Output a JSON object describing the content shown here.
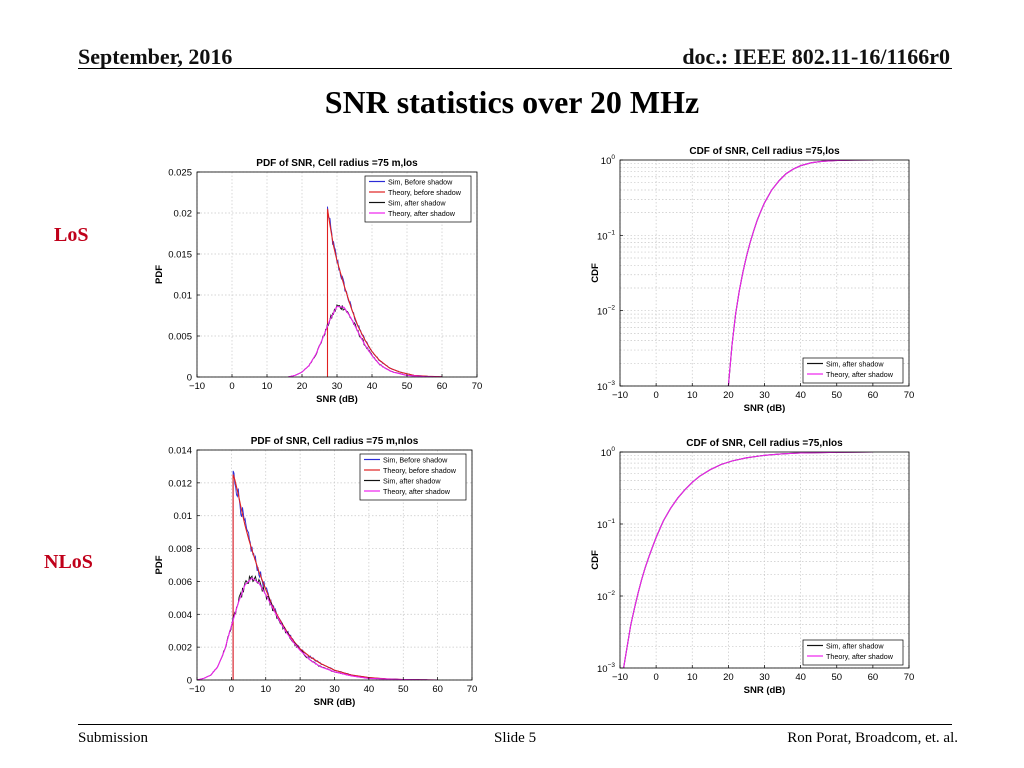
{
  "header": {
    "date": "September, 2016",
    "doc": "doc.: IEEE 802.11-16/1166r0"
  },
  "title": "SNR statistics over 20 MHz",
  "rows": {
    "los": "LoS",
    "nlos": "NLoS"
  },
  "footer": {
    "left": "Submission",
    "center": "Slide 5",
    "right": "Ron Porat, Broadcom, et. al."
  },
  "colors": {
    "sim_before": "#2b2bd6",
    "theory_before": "#e02020",
    "sim_after": "#111111",
    "theory_after": "#ee22ee",
    "row_label": "#c0001a"
  },
  "chart_data": [
    {
      "id": "pdf_los",
      "type": "line",
      "title": "PDF of SNR, Cell radius =75 m,los",
      "xlabel": "SNR (dB)",
      "ylabel": "PDF",
      "xlim": [
        -10,
        70
      ],
      "ylim": [
        0,
        0.025
      ],
      "xticks": [
        -10,
        0,
        10,
        20,
        30,
        40,
        50,
        60,
        70
      ],
      "yticks": [
        0,
        0.005,
        0.01,
        0.015,
        0.02,
        0.025
      ],
      "ytick_labels": [
        "0",
        "0.005",
        "0.01",
        "0.015",
        "0.02",
        "0.025"
      ],
      "legend": [
        "Sim, Before shadow",
        "Theory, before shadow",
        "Sim, after shadow",
        "Theory, after shadow"
      ],
      "legend_position": "top-right",
      "series": [
        {
          "name": "Sim, Before shadow",
          "color_key": "sim_before",
          "noisy": true,
          "x": [
            27.3,
            27.3,
            28,
            29,
            30,
            32,
            34,
            36,
            38,
            40,
            42,
            45,
            48,
            52,
            56,
            60
          ],
          "y": [
            0,
            0.0205,
            0.0185,
            0.016,
            0.0142,
            0.0112,
            0.0085,
            0.0062,
            0.0045,
            0.0031,
            0.0021,
            0.0011,
            0.0006,
            0.0002,
            8e-05,
            3e-05
          ]
        },
        {
          "name": "Theory, before shadow",
          "color_key": "theory_before",
          "noisy": false,
          "x": [
            27.3,
            27.3,
            28,
            29,
            30,
            32,
            34,
            36,
            38,
            40,
            42,
            45,
            48,
            52,
            56,
            60
          ],
          "y": [
            0,
            0.0205,
            0.0185,
            0.016,
            0.0142,
            0.0112,
            0.0085,
            0.0062,
            0.0045,
            0.0031,
            0.0021,
            0.0011,
            0.0006,
            0.0002,
            8e-05,
            3e-05
          ]
        },
        {
          "name": "Sim, after shadow",
          "color_key": "sim_after",
          "noisy": true,
          "x": [
            16,
            18,
            20,
            22,
            24,
            26,
            28,
            30,
            32,
            34,
            36,
            38,
            40,
            42,
            44,
            46,
            50,
            55,
            60
          ],
          "y": [
            0,
            0.0002,
            0.0006,
            0.0014,
            0.0028,
            0.0048,
            0.007,
            0.0086,
            0.0085,
            0.0072,
            0.0055,
            0.0039,
            0.0026,
            0.0016,
            0.001,
            0.0006,
            0.0002,
            5e-05,
            0
          ]
        },
        {
          "name": "Theory, after shadow",
          "color_key": "theory_after",
          "noisy": false,
          "x": [
            16,
            18,
            20,
            22,
            24,
            26,
            28,
            30,
            32,
            34,
            36,
            38,
            40,
            42,
            44,
            46,
            50,
            55,
            60
          ],
          "y": [
            0,
            0.0002,
            0.0006,
            0.0014,
            0.0028,
            0.0048,
            0.007,
            0.0086,
            0.0085,
            0.0072,
            0.0055,
            0.0039,
            0.0026,
            0.0016,
            0.001,
            0.0006,
            0.0002,
            5e-05,
            0
          ]
        }
      ]
    },
    {
      "id": "cdf_los",
      "type": "line",
      "title": "CDF of SNR, Cell radius =75,los",
      "xlabel": "SNR (dB)",
      "ylabel": "CDF",
      "xscale": "linear",
      "yscale": "log",
      "xlim": [
        -10,
        70
      ],
      "ylim": [
        0.001,
        1
      ],
      "xticks": [
        -10,
        0,
        10,
        20,
        30,
        40,
        50,
        60,
        70
      ],
      "yticks": [
        0.001,
        0.01,
        0.1,
        1
      ],
      "ytick_exponents": [
        "-3",
        "-2",
        "-1",
        "0"
      ],
      "legend": [
        "Sim, after shadow",
        "Theory, after shadow"
      ],
      "legend_position": "bottom-right",
      "series": [
        {
          "name": "Sim, after shadow",
          "color_key": "sim_after",
          "x": [
            20,
            21,
            22,
            23,
            24,
            25,
            26,
            27,
            28,
            29,
            30,
            32,
            34,
            36,
            38,
            40,
            43,
            46,
            50,
            55,
            60
          ],
          "y": [
            0.001,
            0.0035,
            0.009,
            0.018,
            0.032,
            0.052,
            0.08,
            0.115,
            0.16,
            0.21,
            0.27,
            0.4,
            0.53,
            0.66,
            0.76,
            0.84,
            0.92,
            0.96,
            0.985,
            0.997,
            1
          ]
        },
        {
          "name": "Theory, after shadow",
          "color_key": "theory_after",
          "x": [
            20,
            21,
            22,
            23,
            24,
            25,
            26,
            27,
            28,
            29,
            30,
            32,
            34,
            36,
            38,
            40,
            43,
            46,
            50,
            55,
            60
          ],
          "y": [
            0.001,
            0.0035,
            0.009,
            0.018,
            0.032,
            0.052,
            0.08,
            0.115,
            0.16,
            0.21,
            0.27,
            0.4,
            0.53,
            0.66,
            0.76,
            0.84,
            0.92,
            0.96,
            0.985,
            0.997,
            1
          ]
        }
      ]
    },
    {
      "id": "pdf_nlos",
      "type": "line",
      "title": "PDF of SNR, Cell radius =75 m,nlos",
      "xlabel": "SNR (dB)",
      "ylabel": "PDF",
      "xlim": [
        -10,
        70
      ],
      "ylim": [
        0,
        0.014
      ],
      "xticks": [
        -10,
        0,
        10,
        20,
        30,
        40,
        50,
        60,
        70
      ],
      "yticks": [
        0,
        0.002,
        0.004,
        0.006,
        0.008,
        0.01,
        0.012,
        0.014
      ],
      "ytick_labels": [
        "0",
        "0.002",
        "0.004",
        "0.006",
        "0.008",
        "0.01",
        "0.012",
        "0.014"
      ],
      "legend": [
        "Sim, Before shadow",
        "Theory, before shadow",
        "Sim, after shadow",
        "Theory, after shadow"
      ],
      "legend_position": "top-right",
      "series": [
        {
          "name": "Sim, Before shadow",
          "color_key": "sim_before",
          "noisy": true,
          "x": [
            0.5,
            0.5,
            1,
            2,
            3,
            4,
            5,
            6,
            8,
            10,
            12,
            14,
            16,
            18,
            20,
            23,
            26,
            30,
            35,
            40,
            45,
            50,
            60
          ],
          "y": [
            0,
            0.0125,
            0.0122,
            0.0113,
            0.0103,
            0.0094,
            0.0086,
            0.0079,
            0.0066,
            0.0055,
            0.0045,
            0.0037,
            0.003,
            0.0024,
            0.0019,
            0.0014,
            0.001,
            0.0006,
            0.0003,
            0.00015,
            7e-05,
            3e-05,
            0
          ]
        },
        {
          "name": "Theory, before shadow",
          "color_key": "theory_before",
          "noisy": false,
          "x": [
            0.5,
            0.5,
            1,
            2,
            3,
            4,
            5,
            6,
            8,
            10,
            12,
            14,
            16,
            18,
            20,
            23,
            26,
            30,
            35,
            40,
            45,
            50,
            60
          ],
          "y": [
            0,
            0.0125,
            0.0122,
            0.0113,
            0.0103,
            0.0094,
            0.0086,
            0.0079,
            0.0066,
            0.0055,
            0.0045,
            0.0037,
            0.003,
            0.0024,
            0.0019,
            0.0014,
            0.001,
            0.0006,
            0.0003,
            0.00015,
            7e-05,
            3e-05,
            0
          ]
        },
        {
          "name": "Sim, after shadow",
          "color_key": "sim_after",
          "noisy": true,
          "x": [
            -10,
            -8,
            -6,
            -4,
            -2,
            0,
            2,
            4,
            6,
            8,
            10,
            12,
            14,
            16,
            18,
            20,
            23,
            26,
            30,
            35,
            40,
            50,
            60
          ],
          "y": [
            0,
            0.0001,
            0.0003,
            0.0008,
            0.0018,
            0.0033,
            0.0047,
            0.0058,
            0.0062,
            0.0059,
            0.0052,
            0.0044,
            0.0036,
            0.0029,
            0.0023,
            0.0018,
            0.0012,
            0.0008,
            0.0005,
            0.00025,
            0.0001,
            3e-05,
            0
          ]
        },
        {
          "name": "Theory, after shadow",
          "color_key": "theory_after",
          "noisy": false,
          "x": [
            -10,
            -8,
            -6,
            -4,
            -2,
            0,
            2,
            4,
            6,
            8,
            10,
            12,
            14,
            16,
            18,
            20,
            23,
            26,
            30,
            35,
            40,
            50,
            60
          ],
          "y": [
            0,
            0.0001,
            0.0003,
            0.0008,
            0.0018,
            0.0033,
            0.0047,
            0.0058,
            0.0062,
            0.0059,
            0.0052,
            0.0044,
            0.0036,
            0.0029,
            0.0023,
            0.0018,
            0.0012,
            0.0008,
            0.0005,
            0.00025,
            0.0001,
            3e-05,
            0
          ]
        }
      ]
    },
    {
      "id": "cdf_nlos",
      "type": "line",
      "title": "CDF of SNR, Cell radius =75,nlos",
      "xlabel": "SNR (dB)",
      "ylabel": "CDF",
      "xscale": "linear",
      "yscale": "log",
      "xlim": [
        -10,
        70
      ],
      "ylim": [
        0.001,
        1
      ],
      "xticks": [
        -10,
        0,
        10,
        20,
        30,
        40,
        50,
        60,
        70
      ],
      "yticks": [
        0.001,
        0.01,
        0.1,
        1
      ],
      "ytick_exponents": [
        "-3",
        "-2",
        "-1",
        "0"
      ],
      "legend": [
        "Sim, after shadow",
        "Theory, after shadow"
      ],
      "legend_position": "bottom-right",
      "series": [
        {
          "name": "Sim, after shadow",
          "color_key": "sim_after",
          "x": [
            -9,
            -8,
            -7,
            -6,
            -5,
            -4,
            -3,
            -2,
            -1,
            0,
            2,
            4,
            6,
            8,
            10,
            12,
            15,
            18,
            21,
            25,
            30,
            35,
            40,
            50,
            60
          ],
          "y": [
            0.001,
            0.002,
            0.004,
            0.0068,
            0.011,
            0.017,
            0.025,
            0.035,
            0.048,
            0.065,
            0.11,
            0.165,
            0.23,
            0.3,
            0.38,
            0.46,
            0.57,
            0.67,
            0.75,
            0.83,
            0.9,
            0.945,
            0.97,
            0.992,
            1
          ]
        },
        {
          "name": "Theory, after shadow",
          "color_key": "theory_after",
          "x": [
            -9,
            -8,
            -7,
            -6,
            -5,
            -4,
            -3,
            -2,
            -1,
            0,
            2,
            4,
            6,
            8,
            10,
            12,
            15,
            18,
            21,
            25,
            30,
            35,
            40,
            50,
            60
          ],
          "y": [
            0.001,
            0.002,
            0.004,
            0.0068,
            0.011,
            0.017,
            0.025,
            0.035,
            0.048,
            0.065,
            0.11,
            0.165,
            0.23,
            0.3,
            0.38,
            0.46,
            0.57,
            0.67,
            0.75,
            0.83,
            0.9,
            0.945,
            0.97,
            0.992,
            1
          ]
        }
      ]
    }
  ]
}
